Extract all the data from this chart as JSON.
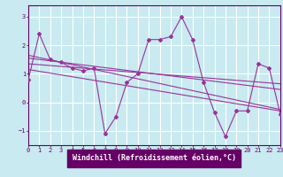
{
  "xlabel": "Windchill (Refroidissement éolien,°C)",
  "bg_color": "#c8eaf0",
  "line_color": "#993399",
  "grid_color": "#ffffff",
  "axis_bar_color": "#660066",
  "x_values": [
    0,
    1,
    2,
    3,
    4,
    5,
    6,
    7,
    8,
    9,
    10,
    11,
    12,
    13,
    14,
    15,
    16,
    17,
    18,
    19,
    20,
    21,
    22,
    23
  ],
  "y_values": [
    0.8,
    2.4,
    1.5,
    1.4,
    1.2,
    1.1,
    1.2,
    -1.1,
    -0.5,
    0.7,
    1.0,
    2.2,
    2.2,
    2.3,
    3.0,
    2.2,
    0.7,
    -0.35,
    -1.2,
    -0.3,
    -0.3,
    1.35,
    1.2,
    -0.4
  ],
  "trend_lines": [
    [
      [
        0,
        23
      ],
      [
        1.35,
        0.65
      ]
    ],
    [
      [
        0,
        23
      ],
      [
        1.55,
        0.45
      ]
    ],
    [
      [
        0,
        23
      ],
      [
        1.15,
        -0.3
      ]
    ],
    [
      [
        0,
        23
      ],
      [
        1.65,
        -0.25
      ]
    ]
  ],
  "xlim": [
    0,
    23
  ],
  "ylim": [
    -1.5,
    3.4
  ],
  "yticks": [
    -1,
    0,
    1,
    2,
    3
  ],
  "xticks": [
    0,
    1,
    2,
    3,
    4,
    5,
    6,
    7,
    8,
    9,
    10,
    11,
    12,
    13,
    14,
    15,
    16,
    17,
    18,
    19,
    20,
    21,
    22,
    23
  ],
  "tick_fontsize": 5.0,
  "xlabel_fontsize": 6.0,
  "axis_color": "#660066",
  "spine_color": "#660066"
}
